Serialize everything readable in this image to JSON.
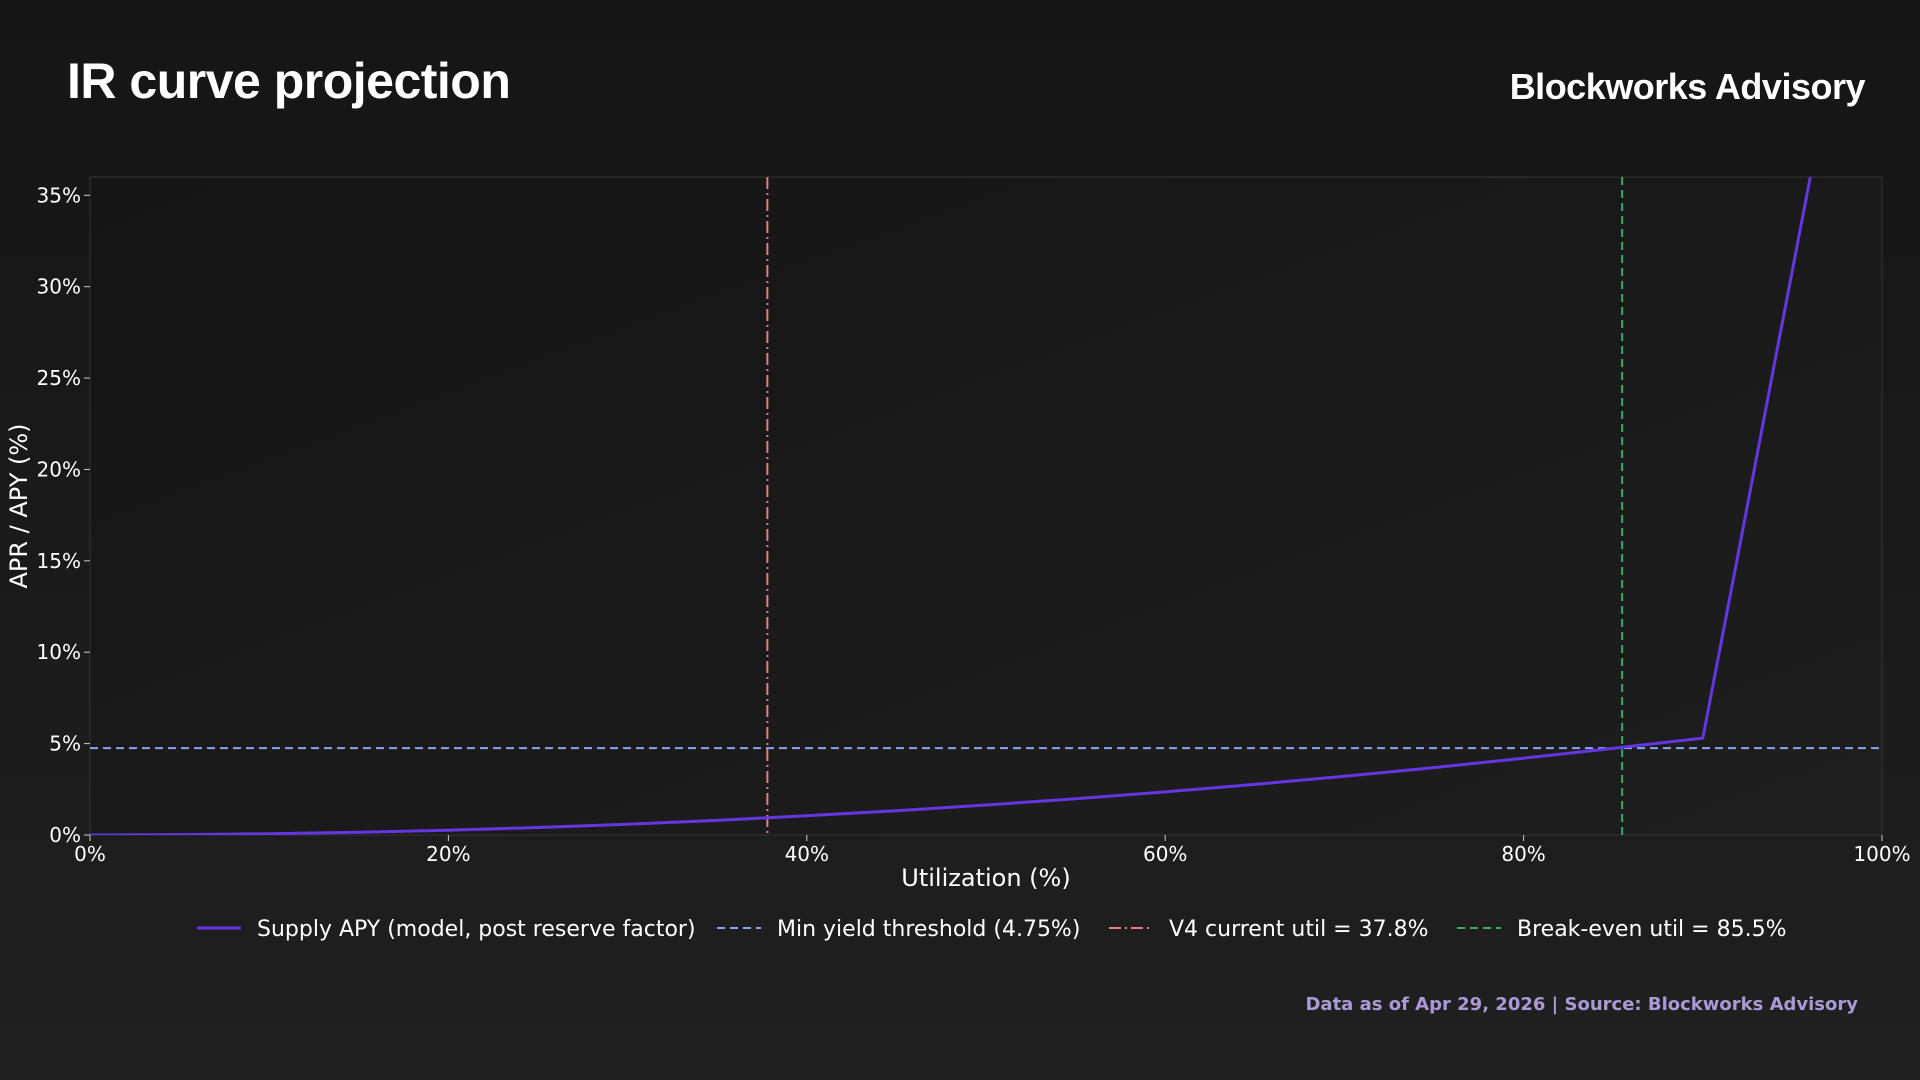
{
  "header": {
    "title": "IR curve projection",
    "brand": "Blockworks Advisory"
  },
  "footer": {
    "note": "Data as of Apr 29, 2026 | Source: Blockworks Advisory"
  },
  "colors": {
    "supply_line": "#6236e0",
    "threshold_line": "#8aa4ee",
    "current_util_line": "#e87c86",
    "breakeven_line": "#3fa867",
    "footer_text": "#a99ad6"
  },
  "chart_data": {
    "type": "line",
    "title": "IR curve projection",
    "xlabel": "Utilization (%)",
    "ylabel": "APR / APY (%)",
    "xlim": [
      0,
      100
    ],
    "ylim": [
      0,
      36
    ],
    "x_ticks": [
      "0%",
      "20%",
      "40%",
      "60%",
      "80%",
      "100%"
    ],
    "y_ticks": [
      "0%",
      "5%",
      "10%",
      "15%",
      "20%",
      "25%",
      "30%",
      "35%"
    ],
    "x_tick_values": [
      0,
      20,
      40,
      60,
      80,
      100
    ],
    "y_tick_values": [
      0,
      5,
      10,
      15,
      20,
      25,
      30,
      35
    ],
    "grid": false,
    "legend_position": "bottom",
    "series": [
      {
        "name": "Supply APY (model, post reserve factor)",
        "style": "solid",
        "color": "#6236e0",
        "x": [
          0,
          5,
          10,
          15,
          20,
          25,
          30,
          35,
          37.8,
          40,
          45,
          50,
          55,
          60,
          65,
          70,
          75,
          80,
          85,
          85.5,
          90,
          92,
          94,
          96
        ],
        "y": [
          0,
          0.02,
          0.07,
          0.15,
          0.26,
          0.41,
          0.59,
          0.8,
          0.94,
          1.05,
          1.33,
          1.64,
          1.98,
          2.36,
          2.77,
          3.21,
          3.69,
          4.2,
          4.74,
          4.8,
          5.3,
          15.5,
          25.8,
          36
        ]
      }
    ],
    "reference_lines": [
      {
        "name": "Min yield threshold (4.75%)",
        "orientation": "horizontal",
        "value": 4.75,
        "style": "dashed",
        "color": "#8aa4ee"
      },
      {
        "name": "V4 current util = 37.8%",
        "orientation": "vertical",
        "value": 37.8,
        "style": "dashdot",
        "color": "#e87c86"
      },
      {
        "name": "Break-even util = 85.5%",
        "orientation": "vertical",
        "value": 85.5,
        "style": "dashed",
        "color": "#3fa867"
      }
    ],
    "legend": [
      "Supply APY (model, post reserve factor)",
      "Min yield threshold (4.75%)",
      "V4 current util = 37.8%",
      "Break-even util = 85.5%"
    ]
  }
}
